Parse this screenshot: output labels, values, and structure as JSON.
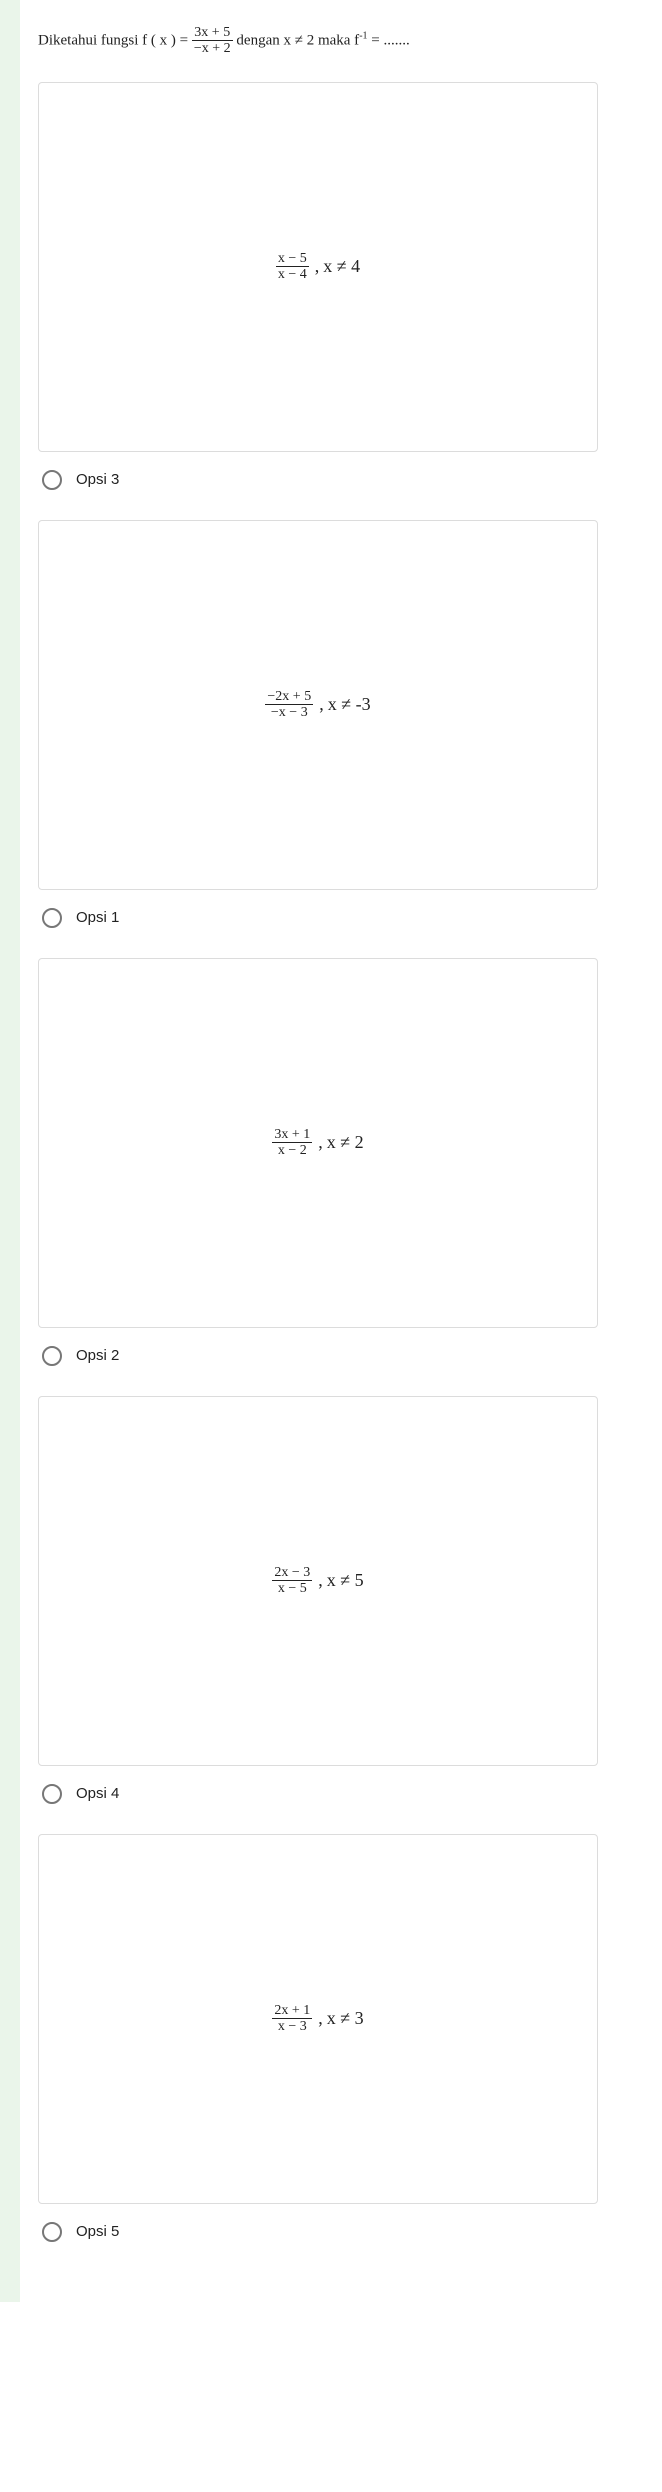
{
  "question": {
    "prefix": "Diketahui fungsi f ( x ) = ",
    "frac_num": "3x + 5",
    "frac_den": "−x + 2",
    "between": " dengan x ≠ 2 maka f",
    "sup": "-1",
    "after": " = ......."
  },
  "cards": [
    {
      "num": "x − 5",
      "den": "x − 4",
      "cond": "x ≠ 4"
    },
    {
      "num": "−2x + 5",
      "den": "−x − 3",
      "cond": "x ≠ -3"
    },
    {
      "num": "3x + 1",
      "den": "x − 2",
      "cond": "x ≠ 2"
    },
    {
      "num": "2x − 3",
      "den": "x − 5",
      "cond": "x ≠ 5"
    },
    {
      "num": "2x + 1",
      "den": "x − 3",
      "cond": "x ≠ 3"
    }
  ],
  "options": [
    {
      "label": "Opsi 3"
    },
    {
      "label": "Opsi 1"
    },
    {
      "label": "Opsi 2"
    },
    {
      "label": "Opsi 4"
    },
    {
      "label": "Opsi 5"
    }
  ],
  "colors": {
    "stripe": "#eaf5ea",
    "border": "#dcdcdc",
    "text": "#222222",
    "radio_border": "#777777"
  }
}
